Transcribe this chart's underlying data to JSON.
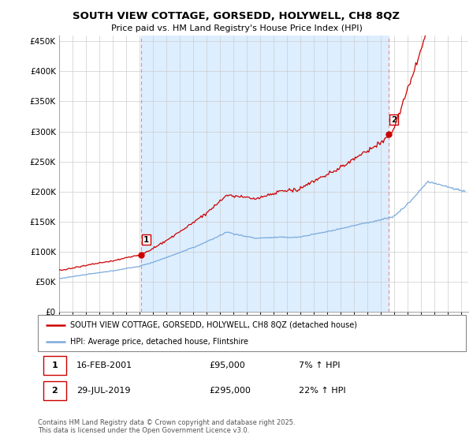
{
  "title_line1": "SOUTH VIEW COTTAGE, GORSEDD, HOLYWELL, CH8 8QZ",
  "title_line2": "Price paid vs. HM Land Registry's House Price Index (HPI)",
  "xlim_start": 1995.0,
  "xlim_end": 2025.5,
  "ylim_min": 0,
  "ylim_max": 460000,
  "yticks": [
    0,
    50000,
    100000,
    150000,
    200000,
    250000,
    300000,
    350000,
    400000,
    450000
  ],
  "ytick_labels": [
    "£0",
    "£50K",
    "£100K",
    "£150K",
    "£200K",
    "£250K",
    "£300K",
    "£350K",
    "£400K",
    "£450K"
  ],
  "xticks": [
    1995,
    1996,
    1997,
    1998,
    1999,
    2000,
    2001,
    2002,
    2003,
    2004,
    2005,
    2006,
    2007,
    2008,
    2009,
    2010,
    2011,
    2012,
    2013,
    2014,
    2015,
    2016,
    2017,
    2018,
    2019,
    2020,
    2021,
    2022,
    2023,
    2024,
    2025
  ],
  "sale1_x": 2001.12,
  "sale1_y": 95000,
  "sale2_x": 2019.58,
  "sale2_y": 295000,
  "red_line_color": "#cc0000",
  "blue_line_color": "#7aaadd",
  "shade_color": "#ddeeff",
  "vline_color": "#ee8888",
  "dot_color": "#cc0000",
  "legend_line1": "SOUTH VIEW COTTAGE, GORSEDD, HOLYWELL, CH8 8QZ (detached house)",
  "legend_line2": "HPI: Average price, detached house, Flintshire",
  "table_row1": [
    "1",
    "16-FEB-2001",
    "£95,000",
    "7% ↑ HPI"
  ],
  "table_row2": [
    "2",
    "29-JUL-2019",
    "£295,000",
    "22% ↑ HPI"
  ],
  "footer": "Contains HM Land Registry data © Crown copyright and database right 2025.\nThis data is licensed under the Open Government Licence v3.0.",
  "bg_color": "#ffffff",
  "grid_color": "#cccccc"
}
